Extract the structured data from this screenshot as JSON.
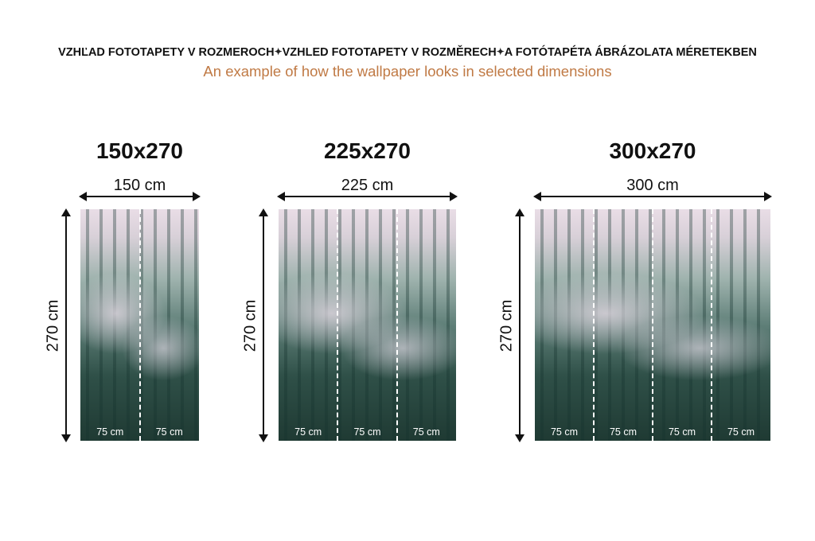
{
  "header": {
    "title_parts": [
      "VZHĽAD FOTOTAPETY V ROZMEROCH",
      "VZHLED FOTOTAPETY V ROZMĚRECH",
      "A FOTÓTAPÉTA ÁBRÁZOLATA MÉRETEKBEN"
    ],
    "subtitle": "An example of how the wallpaper looks in selected dimensions",
    "separator_icon": "sparkle-icon",
    "subtitle_color": "#c07a45"
  },
  "variants": [
    {
      "title": "150x270",
      "width_label": "150 cm",
      "height_label": "270 cm",
      "strips": [
        "75 cm",
        "75 cm"
      ]
    },
    {
      "title": "225x270",
      "width_label": "225 cm",
      "height_label": "270 cm",
      "strips": [
        "75 cm",
        "75 cm",
        "75 cm"
      ]
    },
    {
      "title": "300x270",
      "width_label": "300 cm",
      "height_label": "270 cm",
      "strips": [
        "75 cm",
        "75 cm",
        "75 cm",
        "75 cm"
      ]
    }
  ]
}
